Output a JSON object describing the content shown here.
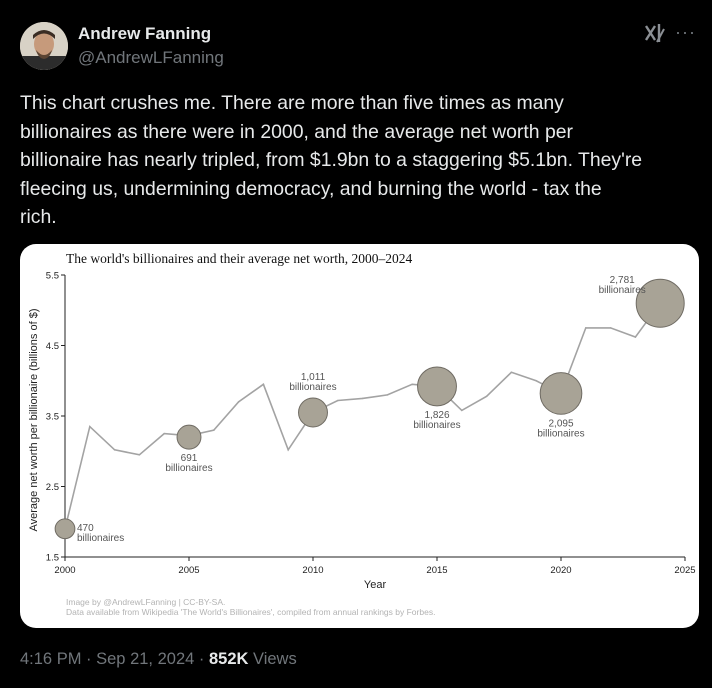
{
  "author": {
    "name": "Andrew Fanning",
    "handle": "@AndrewLFanning"
  },
  "icons": {
    "header_right": "grok-xai-icon",
    "more": "more-horizontal-icon",
    "more_glyph": "···"
  },
  "tweet": {
    "text": "This chart crushes me. There are more than five times as many\nbillionaires as there were in 2000, and the average net worth per\nbillionaire has nearly tripled, from $1.9bn to a staggering $5.1bn. They're\nfleecing us, undermining democracy, and burning the world - tax the\nrich."
  },
  "meta": {
    "time": "4:16 PM",
    "sep1": " · ",
    "date": "Sep 21, 2024",
    "sep2": " · ",
    "views_count": "852K",
    "views_label": " Views"
  },
  "chart_data": {
    "type": "line",
    "title": "The world's billionaires and their average net worth, 2000–2024",
    "xlabel": "Year",
    "ylabel": "Average net worth per billionaire (billions of $)",
    "xlim": [
      2000,
      2025
    ],
    "ylim": [
      1.5,
      5.5
    ],
    "x_ticks": [
      "2000",
      "2005",
      "2010",
      "2015",
      "2020",
      "2025"
    ],
    "y_ticks": [
      "1.5",
      "2.5",
      "3.5",
      "4.5",
      "5.5"
    ],
    "x": [
      2000,
      2001,
      2002,
      2003,
      2004,
      2005,
      2006,
      2007,
      2008,
      2009,
      2010,
      2011,
      2012,
      2013,
      2014,
      2015,
      2016,
      2017,
      2018,
      2019,
      2020,
      2021,
      2022,
      2023,
      2024
    ],
    "y": [
      1.9,
      3.35,
      3.02,
      2.95,
      3.25,
      3.22,
      3.3,
      3.7,
      3.95,
      3.02,
      3.55,
      3.72,
      3.75,
      3.8,
      3.95,
      3.92,
      3.58,
      3.78,
      4.12,
      4.0,
      3.82,
      4.75,
      4.75,
      4.62,
      5.1
    ],
    "bubbles": [
      {
        "year": 2000,
        "value": 1.9,
        "count": "470",
        "label": "billionaires"
      },
      {
        "year": 2005,
        "value": 3.2,
        "count": "691",
        "label": "billionaires"
      },
      {
        "year": 2010,
        "value": 3.55,
        "count": "1,011",
        "label": "billionaires"
      },
      {
        "year": 2015,
        "value": 3.92,
        "count": "1,826",
        "label": "billionaires"
      },
      {
        "year": 2020,
        "value": 3.82,
        "count": "2,095",
        "label": "billionaires"
      },
      {
        "year": 2024,
        "value": 5.1,
        "count": "2,781",
        "label": "billionaires"
      }
    ],
    "line_color": "#a3a3a3",
    "bubble_fill": "#a8a396",
    "bubble_stroke": "#6f6b63",
    "credit_line1": "Image by @AndrewLFanning | CC-BY-SA.",
    "credit_line2": "Data available from Wikipedia 'The World's Billionaires', compiled from annual rankings by Forbes."
  }
}
